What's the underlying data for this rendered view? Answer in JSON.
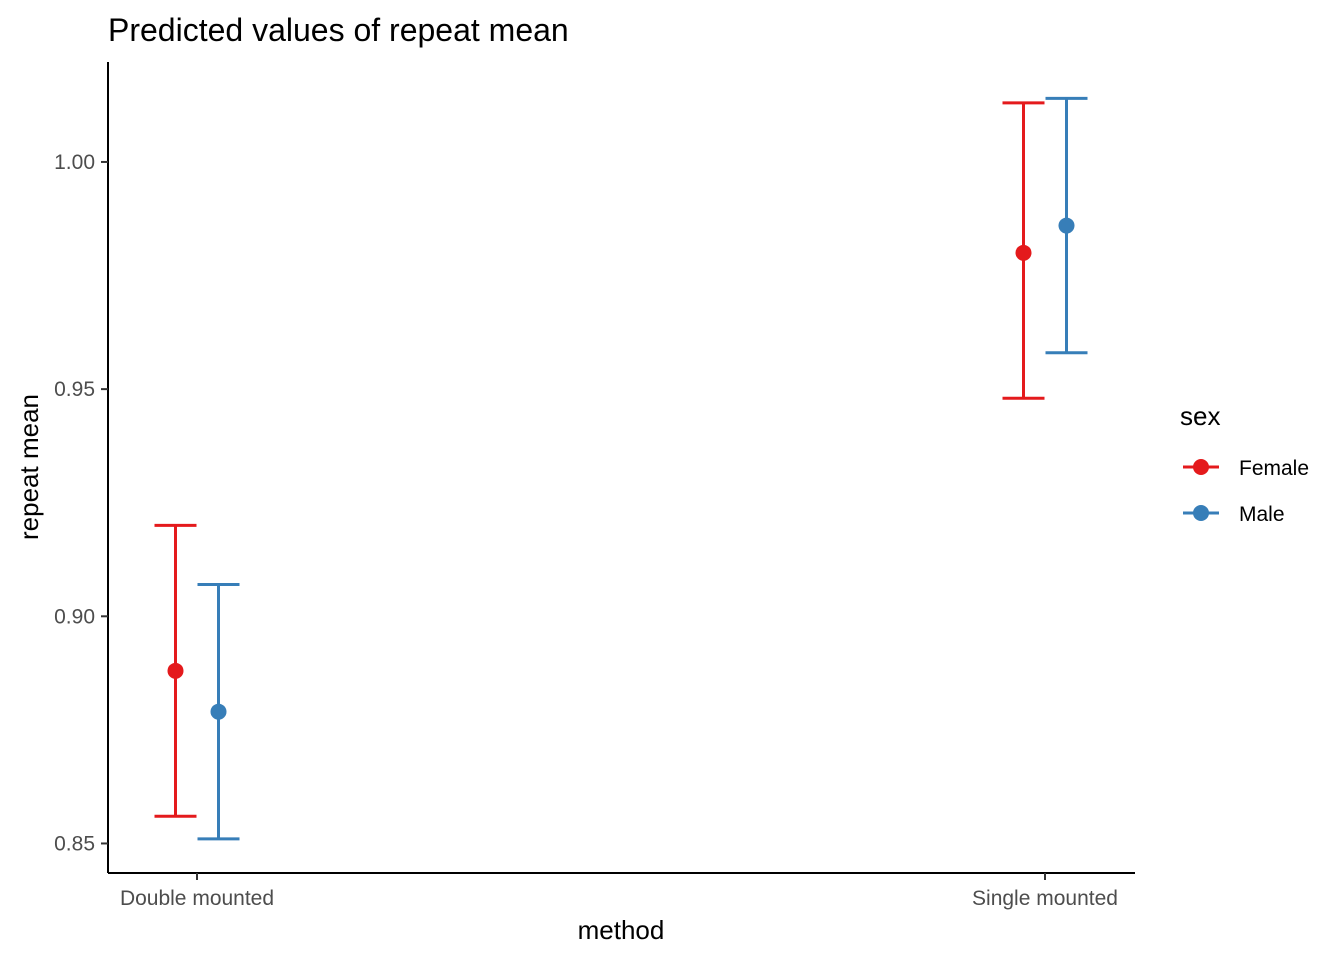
{
  "chart_data": {
    "type": "errorbar",
    "title": "Predicted values of repeat mean",
    "xlabel": "method",
    "ylabel": "repeat mean",
    "categories": [
      "Double mounted",
      "Single mounted"
    ],
    "ylim": [
      0.8435,
      1.022
    ],
    "yticks": [
      0.85,
      0.9,
      0.95,
      1.0
    ],
    "ytick_labels": [
      "0.85",
      "0.90",
      "0.95",
      "1.00"
    ],
    "legend": {
      "title": "sex",
      "position": "right"
    },
    "grid": false,
    "series": [
      {
        "name": "Female",
        "color": "#e41a1c",
        "values": [
          0.888,
          0.98
        ],
        "lower": [
          0.856,
          0.948
        ],
        "upper": [
          0.92,
          1.013
        ]
      },
      {
        "name": "Male",
        "color": "#377eb8",
        "values": [
          0.879,
          0.986
        ],
        "lower": [
          0.851,
          0.958
        ],
        "upper": [
          0.907,
          1.014
        ]
      }
    ]
  }
}
